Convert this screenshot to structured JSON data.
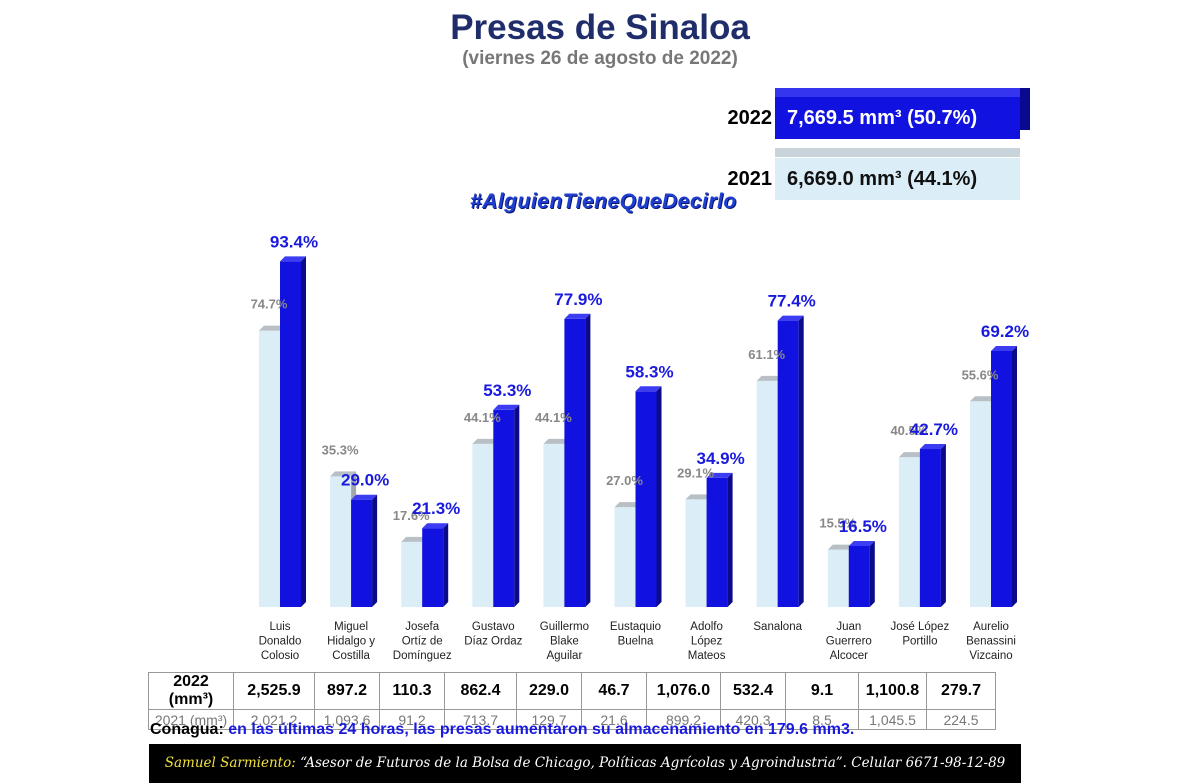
{
  "title": "Presas de Sinaloa",
  "subtitle": "(viernes 26 de agosto de 2022)",
  "totals": {
    "y2022": {
      "year": "2022",
      "text": "7,669.5 mm³ (50.7%)"
    },
    "y2021": {
      "year": "2021",
      "text": "6,669.0 mm³ (44.1%)"
    }
  },
  "hashtag": "#AlguienTieneQueDecirlo",
  "colors": {
    "bar2022": "#1212e0",
    "bar2021": "#dbeef7",
    "label2022": "#1a1adf",
    "label2021": "#888888"
  },
  "chart_data": {
    "type": "bar",
    "categories": [
      "Luis Donaldo Colosio",
      "Miguel Hidalgo y Costilla",
      "Josefa Ortíz de Domínguez",
      "Gustavo Díaz Ordaz",
      "Guillermo Blake Aguilar",
      "Eustaquio Buelna",
      "Adolfo López Mateos",
      "Sanalona",
      "Juan Guerrero Alcocer",
      "José López Portillo",
      "Aurelio Benassini Vizcaino"
    ],
    "category_lines": [
      [
        "Luis",
        "Donaldo",
        "Colosio"
      ],
      [
        "Miguel",
        "Hidalgo y",
        "Costilla"
      ],
      [
        "Josefa",
        "Ortíz de",
        "Domínguez"
      ],
      [
        "Gustavo",
        "Díaz Ordaz"
      ],
      [
        "Guillermo",
        "Blake",
        "Aguilar"
      ],
      [
        "Eustaquio",
        "Buelna"
      ],
      [
        "Adolfo",
        "López",
        "Mateos"
      ],
      [
        "Sanalona"
      ],
      [
        "Juan",
        "Guerrero",
        "Alcocer"
      ],
      [
        "José López",
        "Portillo"
      ],
      [
        "Aurelio",
        "Benassini",
        "Vizcaino"
      ]
    ],
    "series": [
      {
        "name": "2021",
        "values": [
          74.7,
          35.3,
          17.6,
          44.1,
          44.1,
          27.0,
          29.1,
          61.1,
          15.5,
          40.5,
          55.6
        ],
        "labels": [
          "74.7%",
          "35.3%",
          "17.6%",
          "44.1%",
          "44.1%",
          "27.0%",
          "29.1%",
          "61.1%",
          "15.5%",
          "40.5%",
          "55.6%"
        ]
      },
      {
        "name": "2022",
        "values": [
          93.4,
          29.0,
          21.3,
          53.3,
          77.9,
          58.3,
          34.9,
          77.4,
          16.5,
          42.7,
          69.2
        ],
        "labels": [
          "93.4%",
          "29.0%",
          "21.3%",
          "53.3%",
          "77.9%",
          "58.3%",
          "34.9%",
          "77.4%",
          "16.5%",
          "42.7%",
          "69.2%"
        ]
      }
    ],
    "ylim": [
      0,
      100
    ]
  },
  "table": {
    "row2022_label": "2022 (mm³)",
    "row2021_label": "2021 (mm³)",
    "values2022": [
      "2,525.9",
      "897.2",
      "110.3",
      "862.4",
      "229.0",
      "46.7",
      "1,076.0",
      "532.4",
      "9.1",
      "1,100.8",
      "279.7"
    ],
    "values2021": [
      "2,021.2",
      "1,093.6",
      "91.2",
      "713.7",
      "129.7",
      "21.6",
      "899.2",
      "420.3",
      "8.5",
      "1,045.5",
      "224.5"
    ]
  },
  "conagua": {
    "label": "Conagua:",
    "text": "en las últimas 24 horas, las presas aumentaron su almacenamiento en 179.6 mm3."
  },
  "footer": {
    "name": "Samuel Sarmiento:",
    "text": "“Asesor de Futuros de la Bolsa de Chicago, Políticas Agrícolas y Agroindustria”. Celular 6671-98-12-89"
  }
}
